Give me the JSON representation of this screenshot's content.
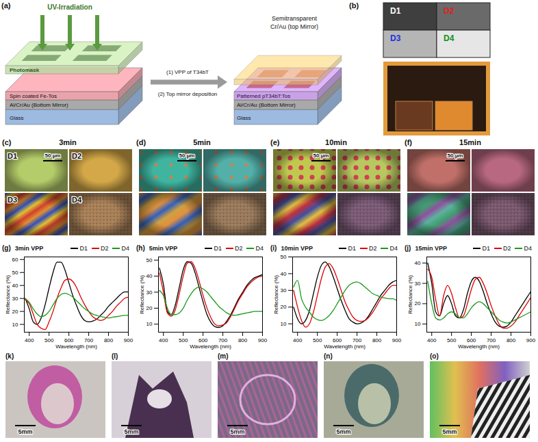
{
  "figure": {
    "panel_labels": [
      "(a)",
      "(b)",
      "(c)",
      "(d)",
      "(e)",
      "(f)",
      "(g)",
      "(h)",
      "(i)",
      "(j)",
      "(k)",
      "(l)",
      "(m)",
      "(n)",
      "(o)"
    ],
    "schematic": {
      "uv": "UV-Irradiation",
      "photomask": "Photomask",
      "left_layers": [
        "Spin coated Fe-Tos",
        "Al/Cr/Au (Bottom Mirror)",
        "Glass"
      ],
      "steps": [
        "(1) VPP of T34bT",
        "(2) Top mirror deposition"
      ],
      "top_mirror": [
        "Semitransparent",
        "Cr/Au (top Mirror)"
      ],
      "right_layers": [
        "Patterned pT34bT:Tos",
        "Al/Cr/Au (Bottom Mirror)",
        "Glass"
      ]
    },
    "device_map": {
      "cells": [
        "D1",
        "D2",
        "D3",
        "D4"
      ],
      "colors": [
        "#3f3f3f",
        "#6a6a6a",
        "#b5b5b5",
        "#e6e6e6"
      ],
      "text_colors": [
        "#ffffff",
        "#e02020",
        "#2030e0",
        "#109020"
      ]
    },
    "micrographs": {
      "titles": [
        "3min",
        "5min",
        "10min",
        "15min"
      ],
      "devices": [
        "D1",
        "D2",
        "D3",
        "D4"
      ],
      "scale_bar": "50 µm"
    },
    "photos": {
      "scale_bar": "5mm"
    }
  },
  "chart_data": [
    {
      "type": "line",
      "title": "3min VPP",
      "xlabel": "Wavelength (nm)",
      "ylabel": "Reflectance (%)",
      "x": [
        380,
        400,
        420,
        440,
        460,
        480,
        500,
        520,
        540,
        560,
        580,
        600,
        620,
        640,
        660,
        680,
        700,
        720,
        740,
        760,
        780,
        800,
        820,
        840,
        860,
        880,
        900
      ],
      "series": [
        {
          "name": "D1",
          "color": "#000000",
          "values": [
            30,
            22,
            12,
            10,
            15,
            25,
            38,
            50,
            58,
            58,
            52,
            42,
            32,
            24,
            17,
            13,
            12,
            12.5,
            14,
            17,
            20,
            24,
            27,
            30,
            33,
            35,
            35
          ]
        },
        {
          "name": "D2",
          "color": "#e00000",
          "values": [
            29,
            26,
            18,
            10,
            7,
            6,
            12,
            20,
            30,
            38,
            44,
            45,
            43,
            38,
            31,
            25,
            20,
            16,
            14,
            13,
            14,
            17,
            20,
            24,
            27,
            30,
            31
          ]
        },
        {
          "name": "D4",
          "color": "#1a9a1a",
          "values": [
            30,
            27,
            22,
            18,
            16,
            17,
            20,
            25,
            30,
            33,
            34,
            33,
            31,
            28,
            25,
            22,
            20,
            18,
            17,
            16,
            15.5,
            15,
            15.5,
            16,
            16.5,
            17,
            17
          ]
        }
      ],
      "xlim": [
        375,
        900
      ],
      "xticks": [
        400,
        500,
        600,
        700,
        800,
        900
      ],
      "ylim": [
        4,
        62
      ],
      "yticks": [
        10,
        20,
        30,
        40,
        50,
        60
      ],
      "grid": false,
      "legend": "top"
    },
    {
      "type": "line",
      "title": "5min VPP",
      "xlabel": "Wavelength (nm)",
      "ylabel": "Reflectance (%)",
      "x": [
        380,
        400,
        420,
        440,
        460,
        480,
        500,
        520,
        540,
        560,
        580,
        600,
        620,
        640,
        660,
        680,
        700,
        720,
        740,
        760,
        780,
        800,
        820,
        840,
        860,
        880,
        900
      ],
      "series": [
        {
          "name": "D1",
          "color": "#000000",
          "values": [
            45,
            35,
            18,
            16,
            22,
            33,
            44,
            49,
            48,
            42,
            33,
            24,
            16,
            11,
            8.5,
            8,
            9,
            12,
            16,
            21,
            26,
            30,
            34,
            37,
            39,
            40,
            41
          ]
        },
        {
          "name": "D2",
          "color": "#e00000",
          "values": [
            42,
            30,
            17,
            15,
            19,
            29,
            40,
            48,
            49,
            45,
            37,
            28,
            20,
            14,
            10,
            9,
            9.5,
            11,
            15,
            20,
            25,
            29,
            33,
            36,
            38,
            39.5,
            40
          ]
        },
        {
          "name": "D4",
          "color": "#1a9a1a",
          "values": [
            31,
            28,
            20,
            16,
            16,
            17,
            20,
            25,
            29,
            32,
            33,
            32,
            30,
            27,
            24,
            21,
            19,
            17,
            16,
            15.5,
            16,
            16.5,
            17,
            17.5,
            18,
            18,
            18
          ]
        }
      ],
      "xlim": [
        375,
        900
      ],
      "xticks": [
        400,
        500,
        600,
        700,
        800,
        900
      ],
      "ylim": [
        5,
        52
      ],
      "yticks": [
        10,
        20,
        30,
        40,
        50
      ],
      "grid": false,
      "legend": "top"
    },
    {
      "type": "line",
      "title": "10min VPP",
      "xlabel": "Wavelength (nm)",
      "ylabel": "Reflectance (%)",
      "x": [
        380,
        400,
        420,
        440,
        460,
        480,
        500,
        520,
        540,
        560,
        580,
        600,
        620,
        640,
        660,
        680,
        700,
        720,
        740,
        760,
        780,
        800,
        820,
        840,
        860,
        880,
        900
      ],
      "series": [
        {
          "name": "D1",
          "color": "#000000",
          "values": [
            20,
            13,
            10,
            12,
            18,
            28,
            38,
            45,
            47,
            44,
            38,
            31,
            24,
            18,
            13,
            11,
            10,
            10.5,
            12,
            15,
            19,
            23,
            27,
            30,
            33,
            35,
            36
          ]
        },
        {
          "name": "D2",
          "color": "#e00000",
          "values": [
            30,
            20,
            12,
            8,
            10,
            17,
            27,
            37,
            44,
            46,
            43,
            37,
            30,
            23,
            18,
            14,
            12,
            11.5,
            12,
            14,
            17,
            21,
            25,
            28,
            31,
            33,
            33
          ]
        },
        {
          "name": "D4",
          "color": "#1a9a1a",
          "values": [
            32,
            36,
            25,
            20,
            17,
            14,
            12.5,
            12,
            13,
            15,
            18,
            22,
            26,
            30,
            33,
            34.5,
            35,
            34,
            32,
            30,
            28,
            27,
            26,
            25.5,
            25,
            25,
            24
          ]
        }
      ],
      "xlim": [
        375,
        900
      ],
      "xticks": [
        400,
        500,
        600,
        700,
        800,
        900
      ],
      "ylim": [
        5,
        50
      ],
      "yticks": [
        10,
        20,
        30,
        40,
        50
      ],
      "grid": false,
      "legend": "top"
    },
    {
      "type": "line",
      "title": "15min VPP",
      "xlabel": "Wavelength (nm)",
      "ylabel": "Reflectance (%)",
      "x": [
        380,
        400,
        420,
        440,
        460,
        480,
        500,
        520,
        540,
        560,
        580,
        600,
        620,
        640,
        660,
        680,
        700,
        720,
        740,
        760,
        780,
        800,
        820,
        840,
        860,
        880,
        900
      ],
      "series": [
        {
          "name": "D1",
          "color": "#000000",
          "values": [
            40,
            30,
            16,
            14,
            20,
            24,
            20,
            14,
            13,
            17,
            25,
            31,
            33,
            31,
            26,
            20,
            15,
            11,
            9,
            8.5,
            9,
            11,
            14,
            17,
            20,
            23,
            26
          ]
        },
        {
          "name": "D2",
          "color": "#e00000",
          "values": [
            37,
            33,
            22,
            14,
            24,
            29,
            25,
            18,
            13,
            14,
            20,
            27,
            32,
            33,
            30,
            25,
            19,
            14,
            10,
            8,
            8,
            9,
            11,
            14,
            17,
            20,
            23
          ]
        },
        {
          "name": "D4",
          "color": "#1a9a1a",
          "values": [
            31,
            20,
            13,
            12,
            13,
            15,
            16,
            15,
            13,
            13,
            15,
            18,
            20,
            21,
            20,
            18,
            16,
            14,
            12,
            11,
            10.5,
            11,
            12,
            13,
            14,
            15,
            16
          ]
        }
      ],
      "xlim": [
        375,
        900
      ],
      "xticks": [
        400,
        500,
        600,
        700,
        800,
        900
      ],
      "ylim": [
        6,
        43
      ],
      "yticks": [
        10,
        20,
        30,
        40
      ],
      "grid": false,
      "legend": "top"
    }
  ]
}
